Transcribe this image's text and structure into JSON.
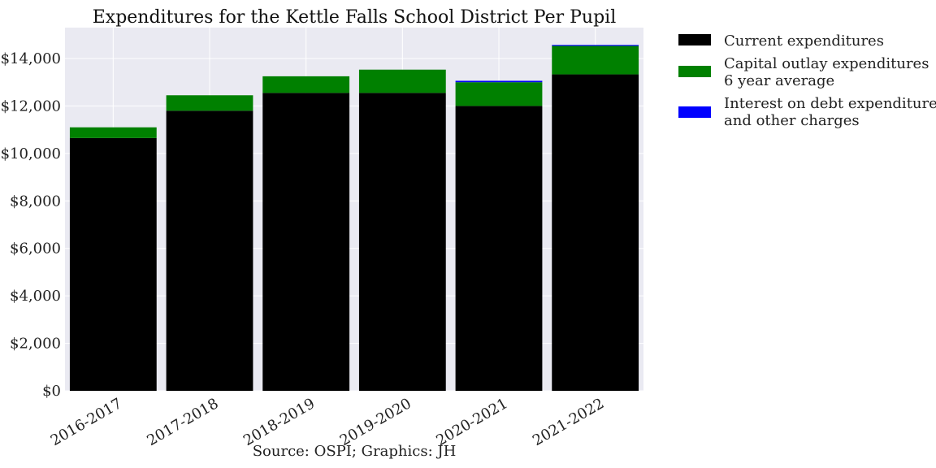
{
  "chart_data": {
    "type": "bar",
    "stacked": true,
    "title": "Expenditures for the Kettle Falls School District Per Pupil",
    "xlabel": "Source: OSPI; Graphics: JH",
    "ylabel": "",
    "categories": [
      "2016-2017",
      "2017-2018",
      "2018-2019",
      "2019-2020",
      "2020-2021",
      "2021-2022"
    ],
    "ylim": [
      0,
      15300
    ],
    "yticks": [
      0,
      2000,
      4000,
      6000,
      8000,
      10000,
      12000,
      14000
    ],
    "ytick_labels": [
      "$0",
      "$2,000",
      "$4,000",
      "$6,000",
      "$8,000",
      "$10,000",
      "$12,000",
      "$14,000"
    ],
    "grid": true,
    "legend_position": "outside-right-top",
    "series": [
      {
        "name": "Current expenditures",
        "color": "#000000",
        "values": [
          10650,
          11800,
          12550,
          12550,
          12000,
          13330
        ]
      },
      {
        "name": "Capital outlay expenditures 6 year average",
        "legend_lines": [
          "Capital outlay expenditures",
          "6 year average"
        ],
        "color": "#008000",
        "values": [
          450,
          650,
          700,
          980,
          1000,
          1200
        ]
      },
      {
        "name": "Interest on debt expenditures and other charges",
        "legend_lines": [
          "Interest on debt expenditures",
          "and other charges"
        ],
        "color": "#0000ff",
        "values": [
          0,
          0,
          0,
          0,
          60,
          40
        ]
      }
    ]
  }
}
